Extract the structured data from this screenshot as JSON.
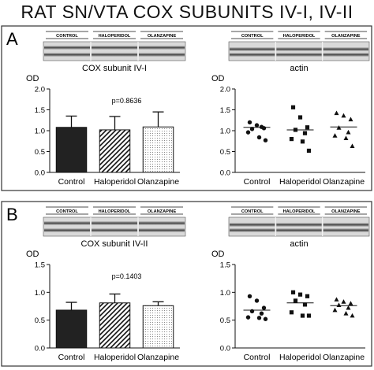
{
  "title": "RAT SN/VTA COX SUBUNITS IV-I, IV-II",
  "colors": {
    "bar_control": "#222222",
    "panel_border": "#333333",
    "blot_band": "#3a3a3a"
  },
  "panels": [
    {
      "letter": "A",
      "blot_left": {
        "lanes": [
          "CONTROL",
          "HALOPERIDOL",
          "OLANZAPINE"
        ],
        "caption": "COX subunit IV-I"
      },
      "blot_right": {
        "lanes": [
          "CONTROL",
          "HALOPERIDOL",
          "OLANZAPINE"
        ],
        "caption": "actin"
      }
    },
    {
      "letter": "B",
      "blot_left": {
        "lanes": [
          "CONTROL",
          "HALOPERIDOL",
          "OLANZAPINE"
        ],
        "caption": "COX subunit IV-II"
      },
      "blot_right": {
        "lanes": [
          "CONTROL",
          "HALOPERIDOL",
          "OLANZAPINE"
        ],
        "caption": "actin"
      }
    }
  ],
  "chart_data": [
    {
      "type": "bar",
      "panel": "A",
      "ylabel": "OD",
      "ylim": [
        0,
        2.0
      ],
      "yticks": [
        "0.0",
        "0.5",
        "1.0",
        "1.5",
        "2.0"
      ],
      "categories": [
        "Control",
        "Haloperidol",
        "Olanzapine"
      ],
      "values": [
        1.08,
        1.02,
        1.09
      ],
      "errors": [
        0.27,
        0.32,
        0.36
      ],
      "fills": [
        "solid",
        "hatch",
        "dots"
      ],
      "annotation": "p=0.8636"
    },
    {
      "type": "scatter",
      "panel": "A",
      "ylabel": "OD",
      "ylim": [
        0,
        2.0
      ],
      "yticks": [
        "0.0",
        "0.5",
        "1.0",
        "1.5",
        "2.0"
      ],
      "categories": [
        "Control",
        "Haloperidol",
        "Olanzapine"
      ],
      "markers": [
        "circle",
        "square",
        "triangle"
      ],
      "series": [
        {
          "points": [
            1.2,
            1.13,
            1.06,
            1.04,
            1.09,
            0.96,
            0.84,
            0.77
          ],
          "mean": 1.08
        },
        {
          "points": [
            1.56,
            1.32,
            1.08,
            1.02,
            0.94,
            0.8,
            0.74,
            0.52
          ],
          "mean": 1.02
        },
        {
          "points": [
            1.42,
            1.36,
            1.27,
            1.07,
            0.96,
            0.88,
            0.82,
            0.63
          ],
          "mean": 1.09
        }
      ]
    },
    {
      "type": "bar",
      "panel": "B",
      "ylabel": "OD",
      "ylim": [
        0,
        1.5
      ],
      "yticks": [
        "0.0",
        "0.5",
        "1.0",
        "1.5"
      ],
      "categories": [
        "Control",
        "Haloperidol",
        "Olanzapine"
      ],
      "values": [
        0.68,
        0.81,
        0.76
      ],
      "errors": [
        0.14,
        0.16,
        0.07
      ],
      "fills": [
        "solid",
        "hatch",
        "dots"
      ],
      "annotation": "p=0.1403"
    },
    {
      "type": "scatter",
      "panel": "B",
      "ylabel": "OD",
      "ylim": [
        0,
        1.5
      ],
      "yticks": [
        "0.0",
        "0.5",
        "1.0",
        "1.5"
      ],
      "categories": [
        "Control",
        "Haloperidol",
        "Olanzapine"
      ],
      "markers": [
        "circle",
        "square",
        "triangle"
      ],
      "series": [
        {
          "points": [
            0.93,
            0.85,
            0.72,
            0.66,
            0.62,
            0.55,
            0.54,
            0.52
          ],
          "mean": 0.68
        },
        {
          "points": [
            1.0,
            0.96,
            0.93,
            0.85,
            0.78,
            0.64,
            0.58,
            0.58
          ],
          "mean": 0.81
        },
        {
          "points": [
            0.87,
            0.83,
            0.8,
            0.77,
            0.72,
            0.68,
            0.62,
            0.58
          ],
          "mean": 0.76
        }
      ]
    }
  ]
}
